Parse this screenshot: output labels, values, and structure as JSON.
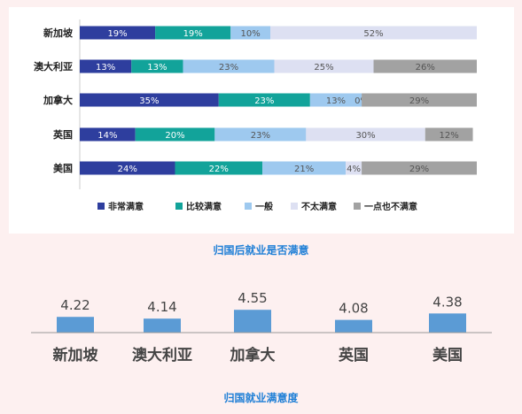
{
  "chart_data": [
    {
      "type": "bar",
      "stacked": true,
      "orientation": "horizontal",
      "categories": [
        "新加坡",
        "澳大利亚",
        "加拿大",
        "英国",
        "美国"
      ],
      "series": [
        {
          "name": "非常满意",
          "color": "#2e3e9e",
          "values": [
            19,
            13,
            35,
            14,
            24
          ]
        },
        {
          "name": "比较满意",
          "color": "#12a39a",
          "values": [
            19,
            13,
            23,
            20,
            22
          ]
        },
        {
          "name": "一般",
          "color": "#9ec9ef",
          "values": [
            10,
            23,
            13,
            23,
            21
          ]
        },
        {
          "name": "不太满意",
          "color": "#dde0f2",
          "values": [
            52,
            25,
            0,
            30,
            4
          ]
        },
        {
          "name": "一点也不满意",
          "color": "#a2a2a2",
          "values": [
            0,
            26,
            29,
            12,
            29
          ]
        }
      ],
      "value_labels": [
        [
          "19%",
          "19%",
          "10%",
          "52%",
          ""
        ],
        [
          "13%",
          "13%",
          "23%",
          "25%",
          "26%"
        ],
        [
          "35%",
          "23%",
          "13%",
          "0%",
          "29%"
        ],
        [
          "14%",
          "20%",
          "23%",
          "30%",
          "12%"
        ],
        [
          "24%",
          "22%",
          "21%",
          "4%",
          "29%"
        ]
      ],
      "legend_position": "bottom",
      "caption": "归国后就业是否满意"
    },
    {
      "type": "bar",
      "categories": [
        "新加坡",
        "澳大利亚",
        "加拿大",
        "英国",
        "美国"
      ],
      "values": [
        4.22,
        4.14,
        4.55,
        4.08,
        4.38
      ],
      "value_labels": [
        "4.22",
        "4.14",
        "4.55",
        "4.08",
        "4.38"
      ],
      "bar_color": "#5b9bd5",
      "caption": "归国就业满意度"
    }
  ]
}
